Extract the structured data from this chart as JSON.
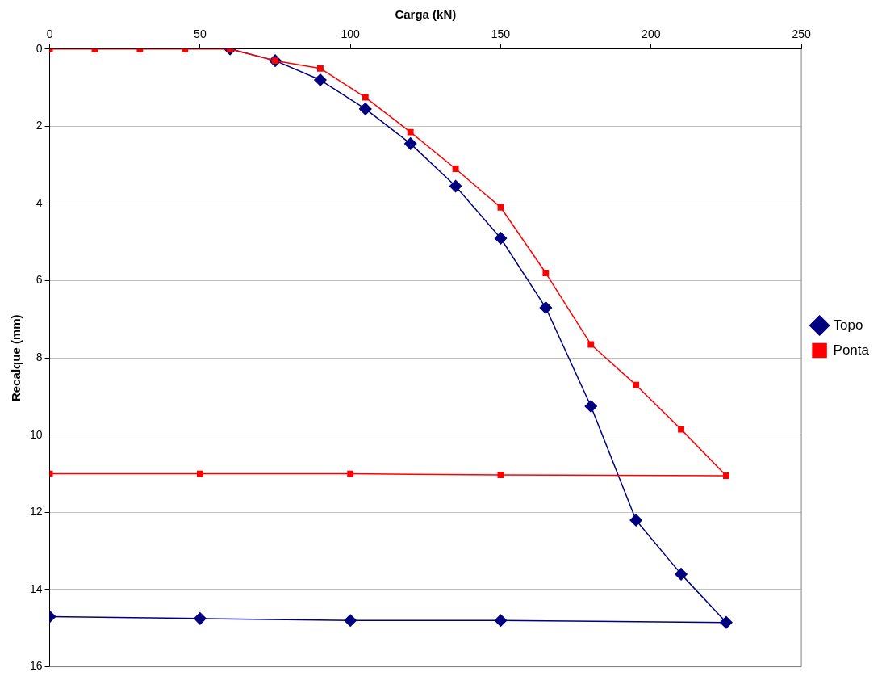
{
  "chart_data": {
    "type": "line",
    "xlabel": "Carga (kN)",
    "ylabel": "Recalque (mm)",
    "xlim": [
      0,
      250
    ],
    "xticks": [
      0,
      50,
      100,
      150,
      200,
      250
    ],
    "ylim": [
      16,
      0
    ],
    "yticks": [
      0,
      2,
      4,
      6,
      8,
      10,
      12,
      14,
      16
    ],
    "grid": "y",
    "legend": "right",
    "line_style": "solid",
    "series": [
      {
        "name": "Topo",
        "color": "#000080",
        "marker": "diamond",
        "x": [
          60,
          75,
          90,
          105,
          120,
          135,
          150,
          165,
          180,
          195,
          210,
          225,
          150,
          100,
          50,
          0
        ],
        "values": [
          0,
          0.3,
          0.8,
          1.55,
          2.45,
          3.55,
          4.9,
          6.7,
          9.25,
          12.2,
          13.6,
          14.85,
          14.8,
          14.8,
          14.75,
          14.7
        ]
      },
      {
        "name": "Ponta",
        "color": "#ff0000",
        "marker": "square",
        "x": [
          0,
          15,
          30,
          45,
          60,
          75,
          90,
          105,
          120,
          135,
          150,
          165,
          180,
          195,
          210,
          225,
          150,
          100,
          50,
          0
        ],
        "values": [
          0,
          0,
          0,
          0,
          0,
          0.3,
          0.5,
          1.25,
          2.15,
          3.1,
          4.1,
          5.8,
          7.65,
          8.7,
          9.85,
          11.05,
          11.03,
          11,
          11,
          11
        ]
      }
    ]
  }
}
